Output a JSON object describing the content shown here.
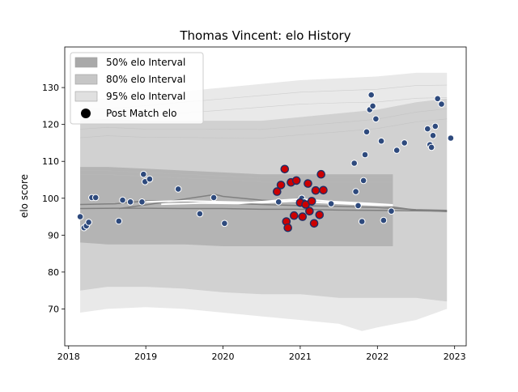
{
  "chart_data": {
    "type": "scatter",
    "title": "Thomas Vincent: elo History",
    "xlabel": "",
    "ylabel": "elo score",
    "xlim": [
      2017.95,
      2023.15
    ],
    "ylim": [
      60,
      141
    ],
    "x_ticks": [
      2018,
      2019,
      2020,
      2021,
      2022,
      2023
    ],
    "x_tick_labels": [
      "2018",
      "2019",
      "2020",
      "2021",
      "2022",
      "2023"
    ],
    "y_ticks": [
      70,
      80,
      90,
      100,
      110,
      120,
      130
    ],
    "y_tick_labels": [
      "70",
      "80",
      "90",
      "100",
      "110",
      "120",
      "130"
    ],
    "legend": {
      "placement": "top-left",
      "entries": [
        {
          "label": "50% elo Interval",
          "color": "#a9a9a9"
        },
        {
          "label": "80% elo Interval",
          "color": "#c6c6c6"
        },
        {
          "label": "95% elo Interval",
          "color": "#e0e0e0"
        },
        {
          "label": "Post Match elo",
          "color": "#000000"
        }
      ]
    },
    "colors": {
      "band_50": "#aaaaaa",
      "band_80": "#c8c8c8",
      "band_95": "#e2e2e2",
      "point_fill": "#2e4a7d",
      "highlight_fill": "#cc0000",
      "highlight_edge": "#1f2f66",
      "line_gray": "#808080",
      "line_white": "#ffffff"
    },
    "bands": [
      {
        "name": "95% elo Interval",
        "level": 95,
        "upper": [
          [
            2018.15,
            127
          ],
          [
            2018.5,
            127
          ],
          [
            2019.0,
            128
          ],
          [
            2019.5,
            129
          ],
          [
            2020.0,
            130
          ],
          [
            2020.5,
            131
          ],
          [
            2021.0,
            132
          ],
          [
            2021.5,
            132.5
          ],
          [
            2022.0,
            133
          ],
          [
            2022.5,
            134
          ],
          [
            2022.9,
            134
          ]
        ],
        "lower": [
          [
            2018.15,
            69
          ],
          [
            2018.5,
            70
          ],
          [
            2019.0,
            70.5
          ],
          [
            2019.5,
            70
          ],
          [
            2020.0,
            69
          ],
          [
            2020.5,
            68
          ],
          [
            2021.0,
            67
          ],
          [
            2021.5,
            66
          ],
          [
            2021.8,
            64
          ],
          [
            2022.0,
            65
          ],
          [
            2022.5,
            67
          ],
          [
            2022.9,
            70
          ]
        ]
      },
      {
        "name": "80% elo Interval",
        "level": 80,
        "upper": [
          [
            2018.15,
            121
          ],
          [
            2018.5,
            121.5
          ],
          [
            2019.0,
            121
          ],
          [
            2019.5,
            121
          ],
          [
            2020.0,
            121
          ],
          [
            2020.5,
            121
          ],
          [
            2021.0,
            122
          ],
          [
            2021.5,
            123
          ],
          [
            2022.0,
            124
          ],
          [
            2022.5,
            126
          ],
          [
            2022.9,
            127
          ]
        ],
        "lower": [
          [
            2018.15,
            75
          ],
          [
            2018.5,
            76
          ],
          [
            2019.0,
            76
          ],
          [
            2019.5,
            75.5
          ],
          [
            2020.0,
            74.5
          ],
          [
            2020.5,
            74
          ],
          [
            2021.0,
            74
          ],
          [
            2021.5,
            73
          ],
          [
            2022.0,
            73
          ],
          [
            2022.5,
            73
          ],
          [
            2022.9,
            72
          ]
        ]
      },
      {
        "name": "50% elo Interval",
        "level": 50,
        "upper": [
          [
            2018.15,
            108.5
          ],
          [
            2018.5,
            108.5
          ],
          [
            2019.0,
            108
          ],
          [
            2019.5,
            107.5
          ],
          [
            2020.0,
            107
          ],
          [
            2020.5,
            106.5
          ],
          [
            2021.0,
            106.5
          ],
          [
            2021.5,
            106.5
          ],
          [
            2022.0,
            106.5
          ],
          [
            2022.2,
            106.5
          ]
        ],
        "lower": [
          [
            2018.15,
            88
          ],
          [
            2018.5,
            87.5
          ],
          [
            2019.0,
            87.5
          ],
          [
            2019.5,
            87.5
          ],
          [
            2020.0,
            87
          ],
          [
            2020.5,
            87
          ],
          [
            2021.0,
            87
          ],
          [
            2021.5,
            87
          ],
          [
            2022.0,
            87
          ],
          [
            2022.2,
            87
          ]
        ]
      }
    ],
    "series": [
      {
        "name": "Post Match elo",
        "marker": "circle",
        "points": [
          [
            2018.15,
            95
          ],
          [
            2018.2,
            92
          ],
          [
            2018.23,
            92.5
          ],
          [
            2018.26,
            93.5
          ],
          [
            2018.3,
            100.2
          ],
          [
            2018.35,
            100.2
          ],
          [
            2018.65,
            93.8
          ],
          [
            2018.7,
            99.5
          ],
          [
            2018.8,
            99
          ],
          [
            2018.95,
            99
          ],
          [
            2018.97,
            106.5
          ],
          [
            2018.99,
            104.5
          ],
          [
            2019.05,
            105.2
          ],
          [
            2019.42,
            102.5
          ],
          [
            2019.7,
            95.8
          ],
          [
            2019.88,
            100.2
          ],
          [
            2020.02,
            93.2
          ],
          [
            2020.72,
            99
          ],
          [
            2021.02,
            100
          ],
          [
            2021.05,
            99
          ],
          [
            2021.4,
            98.5
          ],
          [
            2021.7,
            109.5
          ],
          [
            2021.72,
            101.8
          ],
          [
            2021.75,
            98
          ],
          [
            2021.8,
            93.7
          ],
          [
            2021.82,
            104.8
          ],
          [
            2021.84,
            111.8
          ],
          [
            2021.86,
            118
          ],
          [
            2021.9,
            124
          ],
          [
            2021.92,
            128
          ],
          [
            2021.94,
            125
          ],
          [
            2021.98,
            121.5
          ],
          [
            2022.05,
            115.5
          ],
          [
            2022.08,
            94
          ],
          [
            2022.18,
            96.5
          ],
          [
            2022.25,
            113
          ],
          [
            2022.35,
            115
          ],
          [
            2022.65,
            118.8
          ],
          [
            2022.68,
            114.5
          ],
          [
            2022.7,
            113.8
          ],
          [
            2022.72,
            117
          ],
          [
            2022.75,
            119.5
          ],
          [
            2022.78,
            127
          ],
          [
            2022.83,
            125.5
          ],
          [
            2022.95,
            116.3
          ]
        ]
      },
      {
        "name": "",
        "marker": "circle-highlight",
        "points": [
          [
            2020.7,
            101.8
          ],
          [
            2020.75,
            103.6
          ],
          [
            2020.8,
            107.9
          ],
          [
            2020.82,
            93.7
          ],
          [
            2020.84,
            92
          ],
          [
            2020.88,
            104.3
          ],
          [
            2020.92,
            95.3
          ],
          [
            2020.95,
            104.8
          ],
          [
            2021.0,
            98.8
          ],
          [
            2021.03,
            95
          ],
          [
            2021.07,
            98.3
          ],
          [
            2021.1,
            104
          ],
          [
            2021.12,
            96.5
          ],
          [
            2021.15,
            99.2
          ],
          [
            2021.18,
            93.2
          ],
          [
            2021.2,
            102.1
          ],
          [
            2021.25,
            95.5
          ],
          [
            2021.27,
            106.5
          ],
          [
            2021.3,
            102.2
          ]
        ]
      }
    ],
    "lines": [
      {
        "name": "gray-1",
        "color": "#808080",
        "points": [
          [
            2018.15,
            97.2
          ],
          [
            2018.6,
            97.3
          ],
          [
            2019.0,
            97.3
          ],
          [
            2019.5,
            97.2
          ],
          [
            2020.0,
            97.2
          ],
          [
            2020.5,
            97.0
          ],
          [
            2021.0,
            97.0
          ],
          [
            2021.5,
            96.8
          ],
          [
            2022.0,
            96.7
          ],
          [
            2022.5,
            96.6
          ],
          [
            2022.9,
            96.5
          ]
        ]
      },
      {
        "name": "gray-2",
        "color": "#808080",
        "points": [
          [
            2018.15,
            98.3
          ],
          [
            2018.6,
            98.5
          ],
          [
            2019.0,
            99.3
          ],
          [
            2019.5,
            99.0
          ],
          [
            2020.0,
            98.7
          ],
          [
            2020.5,
            98.3
          ],
          [
            2021.0,
            98.0
          ],
          [
            2021.5,
            97.8
          ],
          [
            2022.0,
            97.5
          ],
          [
            2022.5,
            96.9
          ],
          [
            2022.9,
            96.7
          ]
        ]
      },
      {
        "name": "gray-3",
        "color": "#808080",
        "points": [
          [
            2018.65,
            97.2
          ],
          [
            2019.0,
            98.2
          ],
          [
            2019.5,
            99.8
          ],
          [
            2019.9,
            101
          ],
          [
            2020.0,
            100.5
          ],
          [
            2020.5,
            99.5
          ],
          [
            2021.0,
            99.0
          ],
          [
            2021.5,
            98.6
          ],
          [
            2022.0,
            98.2
          ],
          [
            2022.5,
            96.8
          ],
          [
            2022.9,
            96.4
          ]
        ]
      },
      {
        "name": "white-1",
        "color": "#ffffff",
        "points": [
          [
            2019.0,
            99.0
          ],
          [
            2019.5,
            99.3
          ],
          [
            2020.0,
            99.0
          ],
          [
            2020.5,
            98.8
          ],
          [
            2020.9,
            99.2
          ],
          [
            2021.3,
            98.8
          ],
          [
            2021.8,
            98.3
          ],
          [
            2022.2,
            98.0
          ]
        ]
      },
      {
        "name": "white-2",
        "color": "#ffffff",
        "points": [
          [
            2019.2,
            98.4
          ],
          [
            2019.7,
            98.7
          ],
          [
            2020.2,
            98.6
          ],
          [
            2020.7,
            99.4
          ],
          [
            2021.0,
            99.8
          ],
          [
            2021.4,
            99.1
          ],
          [
            2021.9,
            98.6
          ],
          [
            2022.2,
            98.2
          ]
        ]
      }
    ]
  }
}
